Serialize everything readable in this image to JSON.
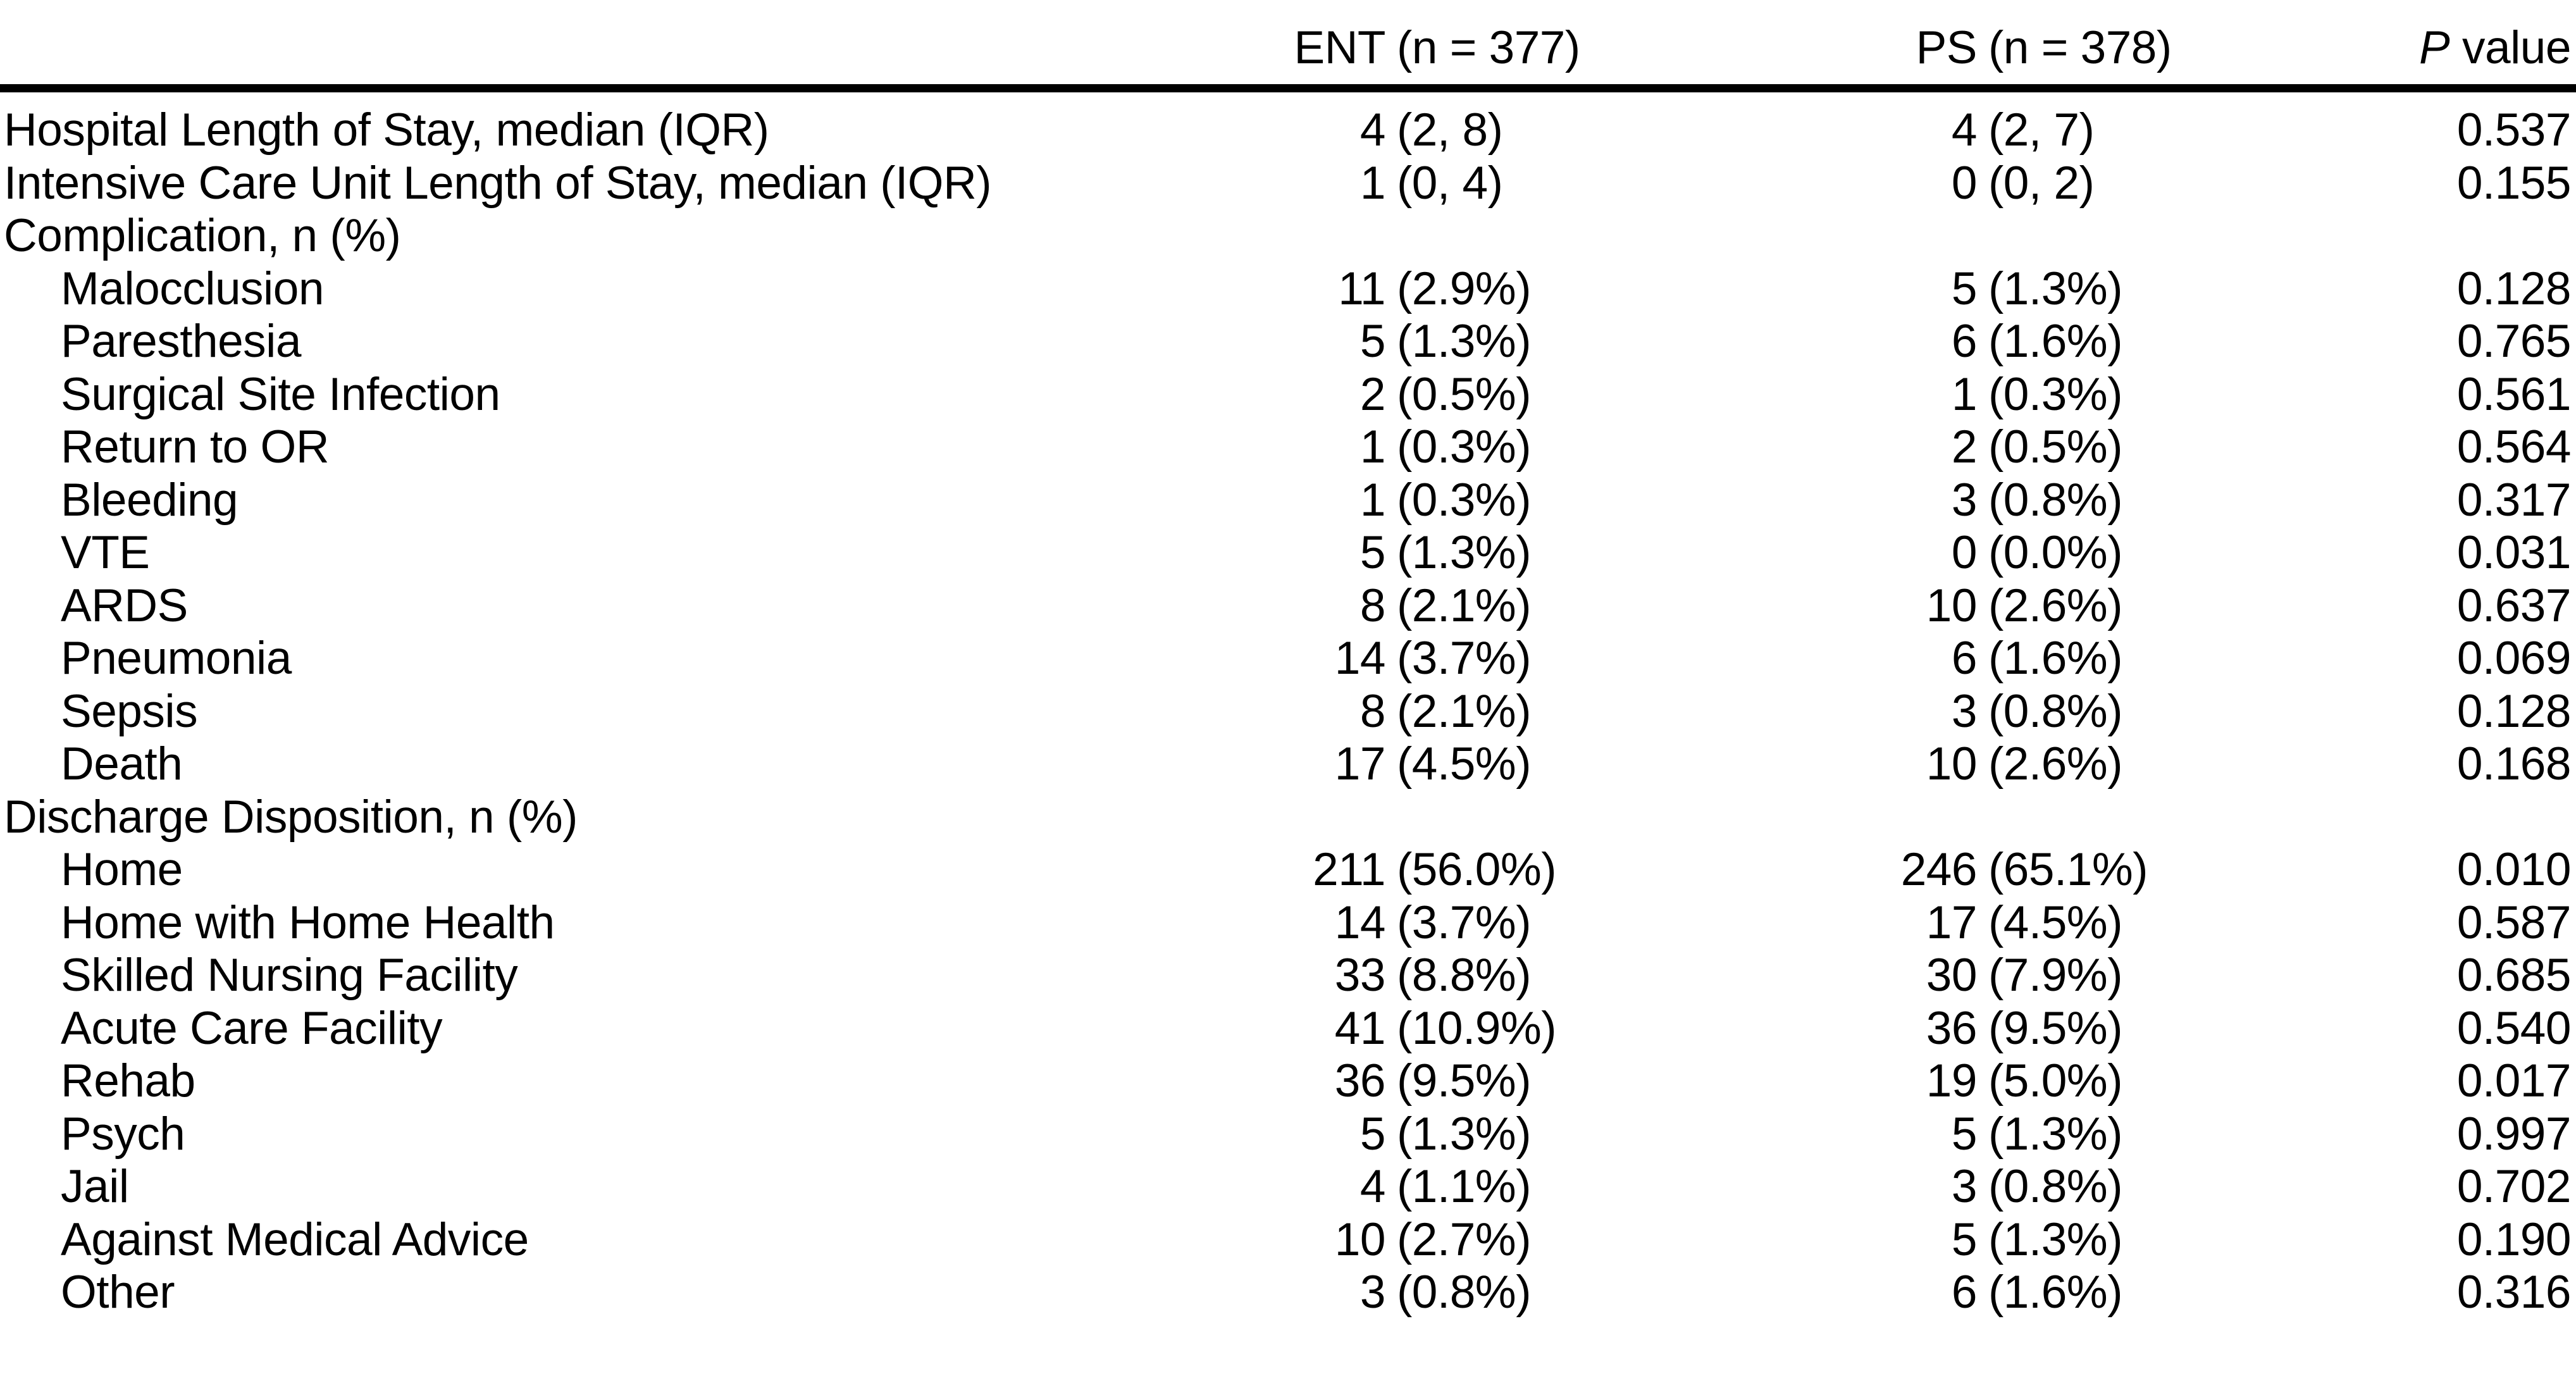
{
  "table": {
    "header": {
      "ent_group": "ENT",
      "ent_n": "(n = 377)",
      "ps_group": "PS",
      "ps_n": "(n = 378)",
      "p_label_italic": "P",
      "p_label_rest": " value"
    },
    "rows": [
      {
        "label": "Hospital Length of Stay, median (IQR)",
        "level": 0,
        "ent_n": "4",
        "ent_p": "(2, 8)",
        "ps_n": "4",
        "ps_p": "(2, 7)",
        "p": "0.537"
      },
      {
        "label": "Intensive Care Unit Length of Stay, median (IQR)",
        "level": 0,
        "ent_n": "1",
        "ent_p": "(0, 4)",
        "ps_n": "0",
        "ps_p": "(0, 2)",
        "p": "0.155"
      },
      {
        "label": "Complication, n (%)",
        "level": 0,
        "ent_n": "",
        "ent_p": "",
        "ps_n": "",
        "ps_p": "",
        "p": ""
      },
      {
        "label": "Malocclusion",
        "level": 1,
        "ent_n": "11",
        "ent_p": "(2.9%)",
        "ps_n": "5",
        "ps_p": "(1.3%)",
        "p": "0.128"
      },
      {
        "label": "Paresthesia",
        "level": 1,
        "ent_n": "5",
        "ent_p": "(1.3%)",
        "ps_n": "6",
        "ps_p": "(1.6%)",
        "p": "0.765"
      },
      {
        "label": "Surgical Site Infection",
        "level": 1,
        "ent_n": "2",
        "ent_p": "(0.5%)",
        "ps_n": "1",
        "ps_p": "(0.3%)",
        "p": "0.561"
      },
      {
        "label": "Return to OR",
        "level": 1,
        "ent_n": "1",
        "ent_p": "(0.3%)",
        "ps_n": "2",
        "ps_p": "(0.5%)",
        "p": "0.564"
      },
      {
        "label": "Bleeding",
        "level": 1,
        "ent_n": "1",
        "ent_p": "(0.3%)",
        "ps_n": "3",
        "ps_p": "(0.8%)",
        "p": "0.317"
      },
      {
        "label": "VTE",
        "level": 1,
        "ent_n": "5",
        "ent_p": "(1.3%)",
        "ps_n": "0",
        "ps_p": "(0.0%)",
        "p": "0.031"
      },
      {
        "label": "ARDS",
        "level": 1,
        "ent_n": "8",
        "ent_p": "(2.1%)",
        "ps_n": "10",
        "ps_p": "(2.6%)",
        "p": "0.637"
      },
      {
        "label": "Pneumonia",
        "level": 1,
        "ent_n": "14",
        "ent_p": "(3.7%)",
        "ps_n": "6",
        "ps_p": "(1.6%)",
        "p": "0.069"
      },
      {
        "label": "Sepsis",
        "level": 1,
        "ent_n": "8",
        "ent_p": "(2.1%)",
        "ps_n": "3",
        "ps_p": "(0.8%)",
        "p": "0.128"
      },
      {
        "label": "Death",
        "level": 1,
        "ent_n": "17",
        "ent_p": "(4.5%)",
        "ps_n": "10",
        "ps_p": "(2.6%)",
        "p": "0.168"
      },
      {
        "label": "Discharge Disposition, n (%)",
        "level": 0,
        "ent_n": "",
        "ent_p": "",
        "ps_n": "",
        "ps_p": "",
        "p": ""
      },
      {
        "label": "Home",
        "level": 1,
        "ent_n": "211",
        "ent_p": "(56.0%)",
        "ps_n": "246",
        "ps_p": "(65.1%)",
        "p": "0.010"
      },
      {
        "label": "Home with Home Health",
        "level": 1,
        "ent_n": "14",
        "ent_p": "(3.7%)",
        "ps_n": "17",
        "ps_p": "(4.5%)",
        "p": "0.587"
      },
      {
        "label": "Skilled Nursing Facility",
        "level": 1,
        "ent_n": "33",
        "ent_p": "(8.8%)",
        "ps_n": "30",
        "ps_p": "(7.9%)",
        "p": "0.685"
      },
      {
        "label": "Acute Care Facility",
        "level": 1,
        "ent_n": "41",
        "ent_p": "(10.9%)",
        "ps_n": "36",
        "ps_p": "(9.5%)",
        "p": "0.540"
      },
      {
        "label": "Rehab",
        "level": 1,
        "ent_n": "36",
        "ent_p": "(9.5%)",
        "ps_n": "19",
        "ps_p": "(5.0%)",
        "p": "0.017"
      },
      {
        "label": "Psych",
        "level": 1,
        "ent_n": "5",
        "ent_p": "(1.3%)",
        "ps_n": "5",
        "ps_p": "(1.3%)",
        "p": "0.997"
      },
      {
        "label": "Jail",
        "level": 1,
        "ent_n": "4",
        "ent_p": "(1.1%)",
        "ps_n": "3",
        "ps_p": "(0.8%)",
        "p": "0.702"
      },
      {
        "label": "Against Medical Advice",
        "level": 1,
        "ent_n": "10",
        "ent_p": "(2.7%)",
        "ps_n": "5",
        "ps_p": "(1.3%)",
        "p": "0.190"
      },
      {
        "label": "Other",
        "level": 1,
        "ent_n": "3",
        "ent_p": "(0.8%)",
        "ps_n": "6",
        "ps_p": "(1.6%)",
        "p": "0.316"
      }
    ],
    "colors": {
      "text": "#000000",
      "background": "#ffffff",
      "rule": "#000000"
    }
  }
}
